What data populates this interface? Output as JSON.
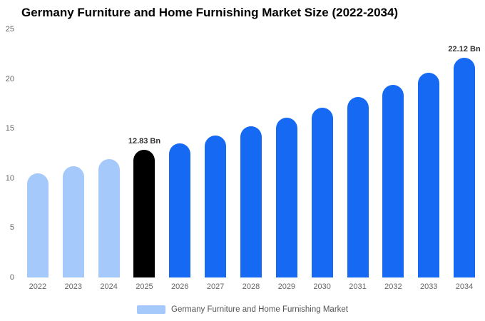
{
  "title": "Germany Furniture and Home Furnishing Market Size (2022-2034)",
  "legend": {
    "label": "Germany Furniture and Home Furnishing Market",
    "swatch_color": "#a6c9fb"
  },
  "palette": {
    "historical": "#a6c9fb",
    "base_year": "#000000",
    "forecast": "#1569f3"
  },
  "chart_data": {
    "type": "bar",
    "title": "Germany Furniture and Home Furnishing Market Size (2022-2034)",
    "categories": [
      "2022",
      "2023",
      "2024",
      "2025",
      "2026",
      "2027",
      "2028",
      "2029",
      "2030",
      "2031",
      "2032",
      "2033",
      "2034"
    ],
    "values": [
      10.5,
      11.2,
      11.9,
      12.83,
      13.5,
      14.3,
      15.2,
      16.1,
      17.1,
      18.2,
      19.4,
      20.6,
      22.12
    ],
    "bar_roles": [
      "historical",
      "historical",
      "historical",
      "base_year",
      "forecast",
      "forecast",
      "forecast",
      "forecast",
      "forecast",
      "forecast",
      "forecast",
      "forecast",
      "forecast"
    ],
    "point_labels": [
      "",
      "",
      "",
      "12.83 Bn",
      "",
      "",
      "",
      "",
      "",
      "",
      "",
      "",
      "22.12 Bn"
    ],
    "xlabel": "",
    "ylabel": "",
    "ylim": [
      0,
      25
    ],
    "yticks": [
      0,
      5,
      10,
      15,
      20,
      25
    ],
    "grid": false,
    "legend_position": "bottom"
  }
}
